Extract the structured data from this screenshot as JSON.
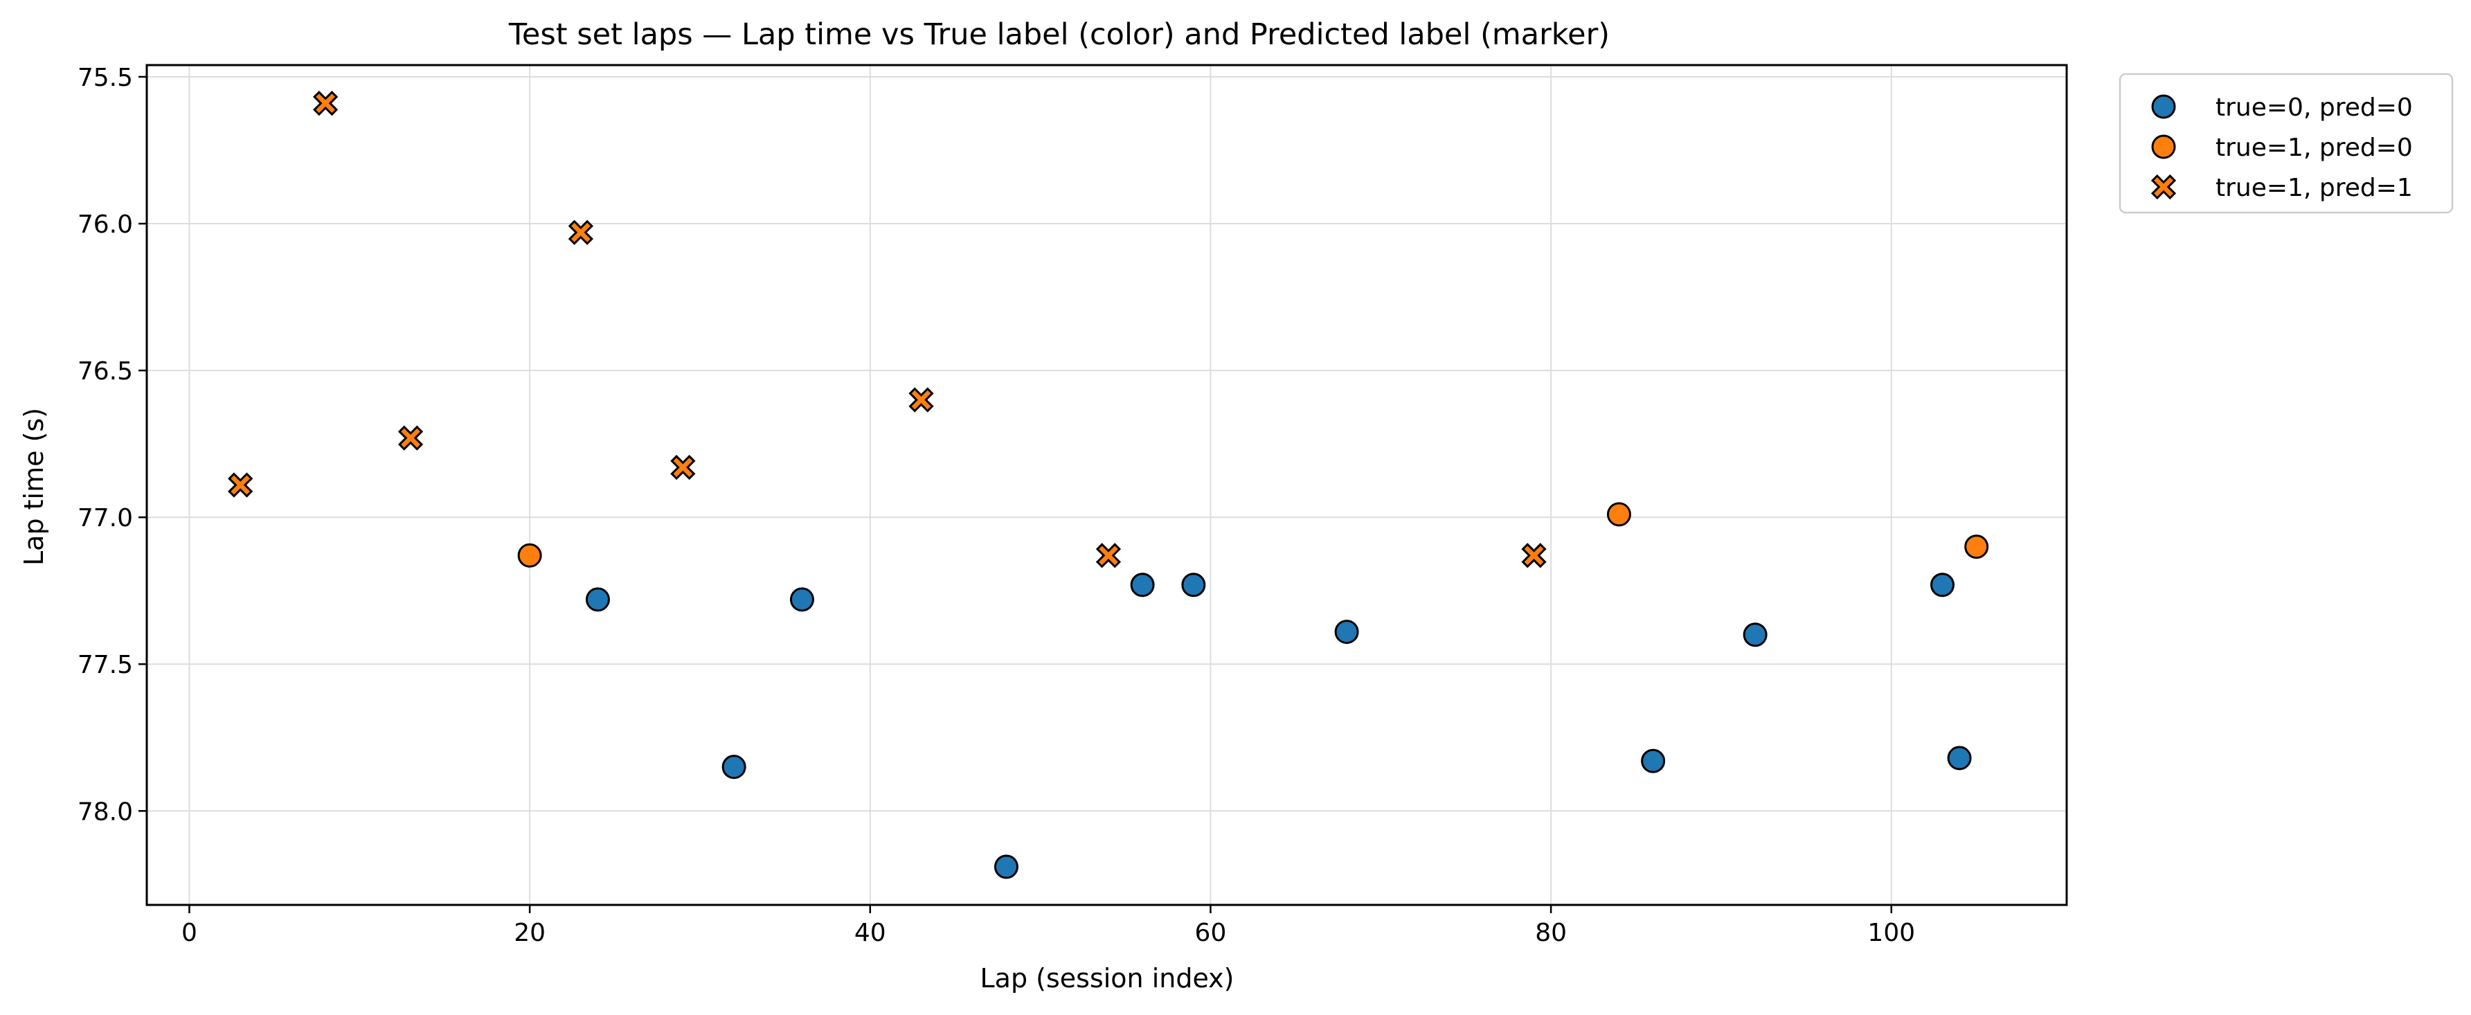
{
  "chart_data": {
    "type": "scatter",
    "title": "Test set laps — Lap time vs True label (color) and Predicted label (marker)",
    "xlabel": "Lap (session index)",
    "ylabel": "Lap time (s)",
    "xlim": [
      -2.5,
      110.3
    ],
    "ylim": [
      78.32,
      75.46
    ],
    "y_inverted": true,
    "grid": true,
    "legend_position": "outside-top-right",
    "x_ticks": [
      0,
      20,
      40,
      60,
      80,
      100
    ],
    "x_tick_labels": [
      "0",
      "20",
      "40",
      "60",
      "80",
      "100"
    ],
    "y_ticks": [
      75.5,
      76.0,
      76.5,
      77.0,
      77.5,
      78.0
    ],
    "y_tick_labels": [
      "75.5",
      "76.0",
      "76.5",
      "77.0",
      "77.5",
      "78.0"
    ],
    "series": [
      {
        "name": "true=0, pred=0",
        "color": "#1f77b4",
        "marker": "circle",
        "points": [
          {
            "x": 24,
            "y": 77.28
          },
          {
            "x": 32,
            "y": 77.85
          },
          {
            "x": 36,
            "y": 77.28
          },
          {
            "x": 48,
            "y": 78.19
          },
          {
            "x": 56,
            "y": 77.23
          },
          {
            "x": 59,
            "y": 77.23
          },
          {
            "x": 68,
            "y": 77.39
          },
          {
            "x": 86,
            "y": 77.83
          },
          {
            "x": 92,
            "y": 77.4
          },
          {
            "x": 103,
            "y": 77.23
          },
          {
            "x": 104,
            "y": 77.82
          }
        ]
      },
      {
        "name": "true=1, pred=0",
        "color": "#ff7f0e",
        "marker": "circle",
        "points": [
          {
            "x": 20,
            "y": 77.13
          },
          {
            "x": 84,
            "y": 76.99
          },
          {
            "x": 105,
            "y": 77.1
          }
        ]
      },
      {
        "name": "true=1, pred=1",
        "color": "#ff7f0e",
        "marker": "x-filled",
        "points": [
          {
            "x": 3,
            "y": 76.89
          },
          {
            "x": 8,
            "y": 75.59
          },
          {
            "x": 13,
            "y": 76.73
          },
          {
            "x": 23,
            "y": 76.03
          },
          {
            "x": 29,
            "y": 76.83
          },
          {
            "x": 43,
            "y": 76.6
          },
          {
            "x": 54,
            "y": 77.13
          },
          {
            "x": 79,
            "y": 77.13
          }
        ]
      }
    ]
  }
}
